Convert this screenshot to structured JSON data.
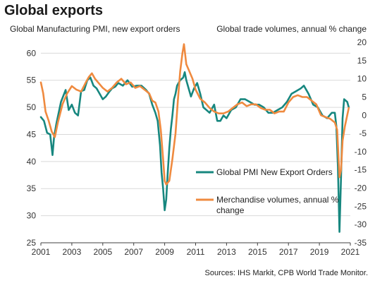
{
  "title": "Global exports",
  "source": "Sources: IHS Markit,  CPB World Trade Monitor.",
  "colors": {
    "pmi": "#17877f",
    "trade": "#ef8a3f",
    "grid": "#d9d9d9",
    "axis": "#404040"
  },
  "chart_data": {
    "type": "line",
    "ylabel_left": "Global Manufacturing PMI, new export orders",
    "ylabel_right": "Global trade volumes,  annual % change",
    "xlim": [
      2001,
      2021
    ],
    "ylim_left": [
      25,
      62
    ],
    "ylim_right": [
      -35,
      20
    ],
    "x_ticks": [
      2001,
      2003,
      2005,
      2007,
      2009,
      2011,
      2013,
      2015,
      2017,
      2019,
      2021
    ],
    "y_left_ticks": [
      25,
      30,
      35,
      40,
      45,
      50,
      55,
      60
    ],
    "y_right_ticks": [
      -35,
      -30,
      -25,
      -20,
      -15,
      -10,
      -5,
      0,
      5,
      10,
      15,
      20
    ],
    "grid": "horizontal",
    "legend_position": "center-right",
    "series": [
      {
        "name": "Global PMI New Export Orders",
        "axis": "left",
        "x": [
          2001.0,
          2001.2,
          2001.4,
          2001.6,
          2001.75,
          2001.85,
          2002.0,
          2002.3,
          2002.6,
          2002.8,
          2003.0,
          2003.2,
          2003.4,
          2003.6,
          2003.8,
          2004.0,
          2004.2,
          2004.4,
          2004.6,
          2004.8,
          2005.0,
          2005.2,
          2005.4,
          2005.6,
          2005.8,
          2006.0,
          2006.3,
          2006.6,
          2006.9,
          2007.2,
          2007.5,
          2007.8,
          2008.0,
          2008.2,
          2008.4,
          2008.55,
          2008.7,
          2008.8,
          2008.9,
          2009.0,
          2009.1,
          2009.2,
          2009.3,
          2009.4,
          2009.5,
          2009.6,
          2009.7,
          2009.8,
          2010.0,
          2010.2,
          2010.3,
          2010.4,
          2010.5,
          2010.7,
          2010.9,
          2011.1,
          2011.3,
          2011.5,
          2011.7,
          2011.9,
          2012.0,
          2012.2,
          2012.4,
          2012.6,
          2012.8,
          2013.0,
          2013.3,
          2013.6,
          2013.9,
          2014.2,
          2014.5,
          2014.8,
          2015.1,
          2015.4,
          2015.7,
          2016.0,
          2016.3,
          2016.6,
          2016.9,
          2017.2,
          2017.5,
          2017.8,
          2018.0,
          2018.3,
          2018.6,
          2018.9,
          2019.2,
          2019.5,
          2019.8,
          2020.0,
          2020.1,
          2020.2,
          2020.3,
          2020.4,
          2020.5,
          2020.6,
          2020.8,
          2020.9
        ],
        "values": [
          48.2,
          47.5,
          45.3,
          45.0,
          41.2,
          44.5,
          47.0,
          51.0,
          53.2,
          49.5,
          50.5,
          49.0,
          48.5,
          53.0,
          53.2,
          55.0,
          55.5,
          54.0,
          53.5,
          52.5,
          51.5,
          52.0,
          52.8,
          53.5,
          53.8,
          54.5,
          54.0,
          55.0,
          53.8,
          54.0,
          54.0,
          53.2,
          52.5,
          50.5,
          49.0,
          47.5,
          43.0,
          38.0,
          35.0,
          31.0,
          33.0,
          38.0,
          42.5,
          46.0,
          48.5,
          51.5,
          52.5,
          54.0,
          55.0,
          55.5,
          56.5,
          55.0,
          54.0,
          52.0,
          53.5,
          54.5,
          52.5,
          50.0,
          49.5,
          49.0,
          49.5,
          50.5,
          47.5,
          47.5,
          48.5,
          48.0,
          49.5,
          50.0,
          51.5,
          51.5,
          51.0,
          50.5,
          50.5,
          50.0,
          49.0,
          49.0,
          49.5,
          50.0,
          51.0,
          52.5,
          53.0,
          53.5,
          54.0,
          52.5,
          50.5,
          50.0,
          48.5,
          48.0,
          49.0,
          49.0,
          46.5,
          39.0,
          27.0,
          37.0,
          48.0,
          51.5,
          51.0,
          50.0
        ]
      },
      {
        "name": "Merchandise volumes, annual % change",
        "axis": "right",
        "x": [
          2001.0,
          2001.15,
          2001.3,
          2001.5,
          2001.7,
          2001.9,
          2002.1,
          2002.4,
          2002.7,
          2003.0,
          2003.3,
          2003.6,
          2003.9,
          2004.1,
          2004.3,
          2004.5,
          2004.7,
          2005.0,
          2005.3,
          2005.6,
          2005.9,
          2006.2,
          2006.5,
          2006.8,
          2007.1,
          2007.4,
          2007.7,
          2008.0,
          2008.2,
          2008.4,
          2008.6,
          2008.75,
          2008.9,
          2009.0,
          2009.1,
          2009.3,
          2009.5,
          2009.7,
          2009.85,
          2010.0,
          2010.15,
          2010.25,
          2010.4,
          2010.6,
          2010.8,
          2011.0,
          2011.3,
          2011.6,
          2011.9,
          2012.2,
          2012.5,
          2012.8,
          2013.1,
          2013.4,
          2013.7,
          2014.0,
          2014.3,
          2014.6,
          2014.9,
          2015.2,
          2015.5,
          2015.8,
          2016.1,
          2016.4,
          2016.7,
          2017.0,
          2017.3,
          2017.6,
          2017.9,
          2018.2,
          2018.5,
          2018.8,
          2019.1,
          2019.4,
          2019.7,
          2020.0,
          2020.15,
          2020.3,
          2020.4,
          2020.5,
          2020.65,
          2020.8,
          2020.9
        ],
        "values": [
          9.0,
          6.0,
          1.0,
          -1.5,
          -4.5,
          -6.0,
          -2.0,
          3.0,
          6.0,
          8.0,
          7.0,
          6.5,
          9.0,
          10.5,
          11.5,
          10.0,
          9.0,
          7.5,
          6.5,
          7.5,
          9.0,
          10.0,
          8.5,
          9.0,
          7.5,
          8.0,
          7.0,
          6.0,
          4.0,
          3.5,
          1.0,
          -4.0,
          -12.0,
          -18.0,
          -19.0,
          -18.0,
          -12.0,
          -5.0,
          4.0,
          12.0,
          17.0,
          19.5,
          14.0,
          12.0,
          10.0,
          7.0,
          4.5,
          3.5,
          2.0,
          1.0,
          0.5,
          0.5,
          1.0,
          2.0,
          3.0,
          3.5,
          2.5,
          3.0,
          3.0,
          2.0,
          1.5,
          1.5,
          0.5,
          1.0,
          1.0,
          3.5,
          5.0,
          5.5,
          5.0,
          5.0,
          4.0,
          3.0,
          0.0,
          -0.5,
          -1.0,
          -2.0,
          -4.0,
          -17.0,
          -15.0,
          -7.0,
          -3.0,
          0.0,
          2.0
        ]
      }
    ]
  }
}
